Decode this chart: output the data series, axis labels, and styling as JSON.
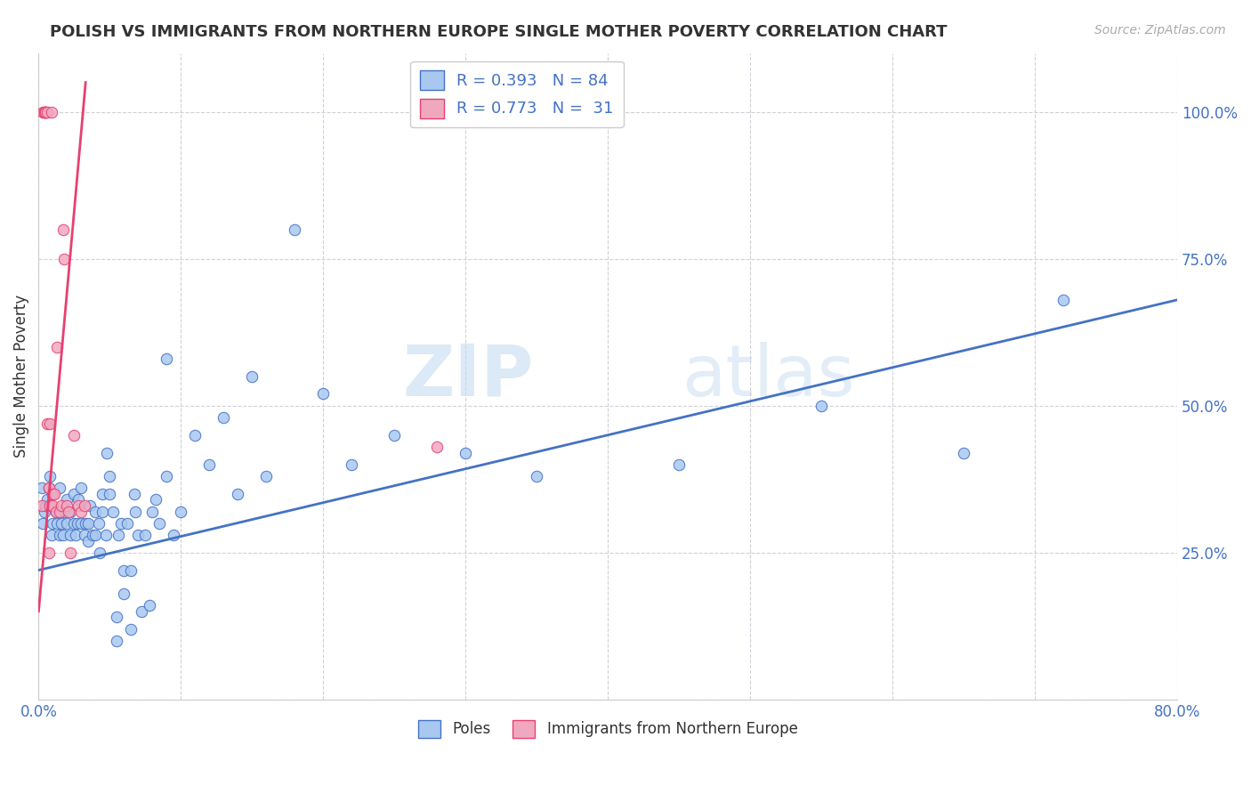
{
  "title": "POLISH VS IMMIGRANTS FROM NORTHERN EUROPE SINGLE MOTHER POVERTY CORRELATION CHART",
  "source": "Source: ZipAtlas.com",
  "ylabel": "Single Mother Poverty",
  "legend_entries": [
    {
      "label": "Poles",
      "R": "0.393",
      "N": "84",
      "color": "#a8c8f0",
      "line_color": "#4472c4"
    },
    {
      "label": "Immigrants from Northern Europe",
      "R": "0.773",
      "N": "31",
      "color": "#f0a8c0",
      "line_color": "#e84070"
    }
  ],
  "watermark_zip": "ZIP",
  "watermark_atlas": "atlas",
  "background_color": "#ffffff",
  "grid_color": "#d0d0d8",
  "poles_x": [
    0.002,
    0.003,
    0.004,
    0.005,
    0.006,
    0.007,
    0.008,
    0.009,
    0.01,
    0.01,
    0.012,
    0.013,
    0.015,
    0.015,
    0.015,
    0.016,
    0.017,
    0.018,
    0.02,
    0.02,
    0.022,
    0.022,
    0.025,
    0.025,
    0.026,
    0.027,
    0.028,
    0.03,
    0.03,
    0.032,
    0.033,
    0.035,
    0.035,
    0.036,
    0.038,
    0.04,
    0.04,
    0.042,
    0.043,
    0.045,
    0.045,
    0.047,
    0.048,
    0.05,
    0.05,
    0.052,
    0.055,
    0.055,
    0.056,
    0.058,
    0.06,
    0.06,
    0.062,
    0.065,
    0.065,
    0.067,
    0.068,
    0.07,
    0.072,
    0.075,
    0.078,
    0.08,
    0.082,
    0.085,
    0.09,
    0.09,
    0.095,
    0.1,
    0.11,
    0.12,
    0.13,
    0.14,
    0.15,
    0.16,
    0.18,
    0.2,
    0.22,
    0.25,
    0.3,
    0.35,
    0.45,
    0.55,
    0.65,
    0.72
  ],
  "poles_y": [
    0.36,
    0.3,
    0.32,
    0.33,
    0.34,
    0.36,
    0.38,
    0.28,
    0.3,
    0.35,
    0.32,
    0.3,
    0.28,
    0.32,
    0.36,
    0.3,
    0.28,
    0.32,
    0.3,
    0.34,
    0.28,
    0.32,
    0.3,
    0.35,
    0.28,
    0.3,
    0.34,
    0.3,
    0.36,
    0.28,
    0.3,
    0.27,
    0.3,
    0.33,
    0.28,
    0.28,
    0.32,
    0.3,
    0.25,
    0.32,
    0.35,
    0.28,
    0.42,
    0.35,
    0.38,
    0.32,
    0.1,
    0.14,
    0.28,
    0.3,
    0.18,
    0.22,
    0.3,
    0.12,
    0.22,
    0.35,
    0.32,
    0.28,
    0.15,
    0.28,
    0.16,
    0.32,
    0.34,
    0.3,
    0.58,
    0.38,
    0.28,
    0.32,
    0.45,
    0.4,
    0.48,
    0.35,
    0.55,
    0.38,
    0.8,
    0.52,
    0.4,
    0.45,
    0.42,
    0.38,
    0.4,
    0.5,
    0.42,
    0.68
  ],
  "imm_x": [
    0.002,
    0.003,
    0.004,
    0.004,
    0.005,
    0.005,
    0.005,
    0.006,
    0.006,
    0.007,
    0.007,
    0.008,
    0.008,
    0.009,
    0.01,
    0.01,
    0.011,
    0.012,
    0.013,
    0.015,
    0.016,
    0.017,
    0.018,
    0.02,
    0.021,
    0.022,
    0.025,
    0.028,
    0.03,
    0.032,
    0.28
  ],
  "imm_y": [
    0.33,
    1.0,
    1.0,
    1.0,
    1.0,
    1.0,
    1.0,
    1.0,
    0.47,
    0.36,
    0.25,
    0.47,
    0.33,
    1.0,
    0.35,
    0.33,
    0.35,
    0.32,
    0.6,
    0.32,
    0.33,
    0.8,
    0.75,
    0.33,
    0.32,
    0.25,
    0.45,
    0.33,
    0.32,
    0.33,
    0.43
  ],
  "poles_trend_x": [
    0.0,
    0.8
  ],
  "poles_trend_y": [
    0.22,
    0.68
  ],
  "imm_trend_x": [
    0.0,
    0.033
  ],
  "imm_trend_y": [
    0.15,
    1.05
  ],
  "xlim": [
    0.0,
    0.8
  ],
  "ylim": [
    0.0,
    1.1
  ],
  "xticks": [
    0.0,
    0.1,
    0.2,
    0.3,
    0.4,
    0.5,
    0.6,
    0.7,
    0.8
  ],
  "yticks": [
    0.0,
    0.25,
    0.5,
    0.75,
    1.0
  ],
  "ytick_labels_right": [
    "",
    "25.0%",
    "50.0%",
    "75.0%",
    "100.0%"
  ]
}
